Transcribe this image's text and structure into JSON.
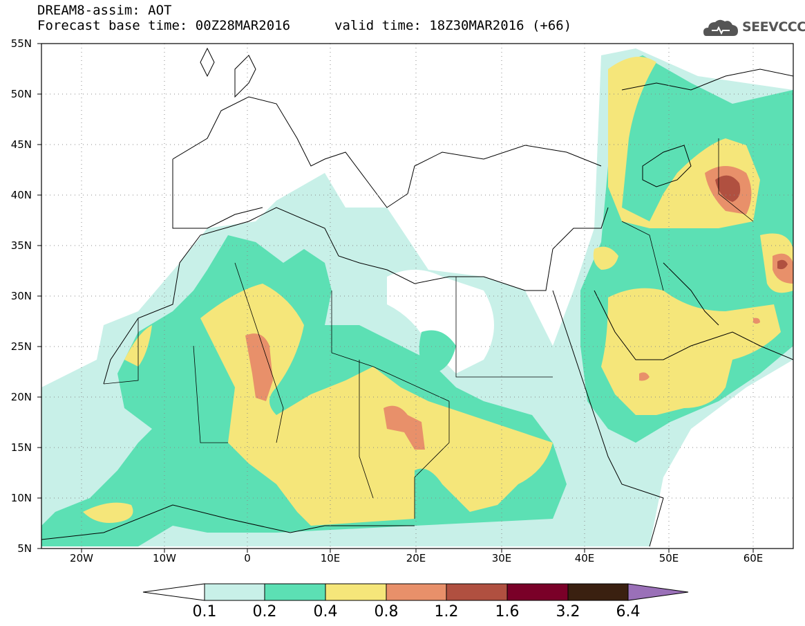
{
  "header": {
    "line1": "DREAM8-assim: AOT",
    "base_time": "Forecast base time: 00Z28MAR2016",
    "valid_time": "valid time: 18Z30MAR2016 (+66)",
    "logo_text": "SEEVCCC"
  },
  "map": {
    "lat_labels": [
      "55N",
      "50N",
      "45N",
      "40N",
      "35N",
      "30N",
      "25N",
      "20N",
      "15N",
      "10N",
      "5N"
    ],
    "lon_labels": [
      "20W",
      "10W",
      "0",
      "10E",
      "20E",
      "30E",
      "40E",
      "50E",
      "60E"
    ],
    "colors": {
      "land_outline": "#000000",
      "grid": "#888888"
    }
  },
  "colorbar": {
    "labels": [
      "0.1",
      "0.2",
      "0.4",
      "0.8",
      "1.2",
      "1.6",
      "3.2",
      "6.4"
    ],
    "colors": [
      "#ffffff",
      "#c8f0e8",
      "#5ce0b4",
      "#f5e67a",
      "#e8906a",
      "#b05040",
      "#7a0028",
      "#3a2010",
      "#9a70b8"
    ]
  }
}
